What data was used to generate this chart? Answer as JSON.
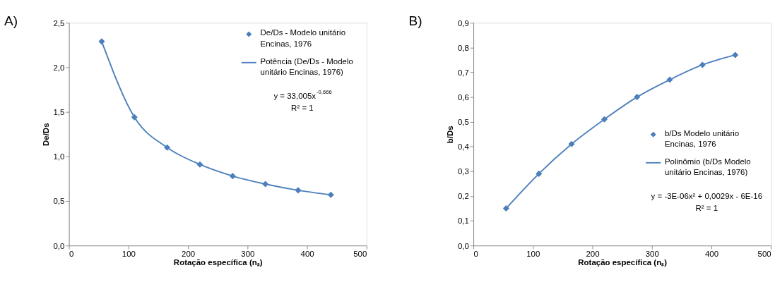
{
  "chart_data": [
    {
      "type": "scatter",
      "title": "A)",
      "xlabel": "Rotação específica (nₛ)",
      "ylabel": "De/Ds",
      "x": [
        55,
        110,
        165,
        220,
        275,
        330,
        385,
        440
      ],
      "series": [
        {
          "name": "De/Ds - Modelo unitário Encinas, 1976",
          "color": "#4a7ebb",
          "marker": "diamond",
          "values": [
            2.29,
            1.44,
            1.1,
            0.91,
            0.78,
            0.69,
            0.62,
            0.57
          ]
        },
        {
          "name": "Potência (De/Ds - Modelo unitário Encinas, 1976)",
          "type": "line",
          "color": "#4f81bd",
          "marker": "none",
          "values": [
            2.29,
            1.44,
            1.1,
            0.91,
            0.78,
            0.69,
            0.62,
            0.57
          ]
        }
      ],
      "xlim": [
        0,
        500
      ],
      "xticks": [
        0,
        100,
        200,
        300,
        400,
        500
      ],
      "ylim": [
        0,
        2.5
      ],
      "yticks": [
        {
          "value": 0,
          "label": "0,0"
        },
        {
          "value": 0.5,
          "label": "0,5"
        },
        {
          "value": 1,
          "label": "1,0"
        },
        {
          "value": 1.5,
          "label": "1,5"
        },
        {
          "value": 2,
          "label": "2,0"
        },
        {
          "value": 2.5,
          "label": "2,5"
        }
      ],
      "annotations": [
        "y = 33,005x$^{-0,666}$",
        "R² = 1"
      ],
      "legend": "top right",
      "grid": false
    },
    {
      "type": "scatter",
      "title": "B)",
      "xlabel": "Rotação específica (nₛ)",
      "ylabel": "b/Ds",
      "x": [
        55,
        110,
        165,
        220,
        275,
        330,
        385,
        440
      ],
      "series": [
        {
          "name": "b/Ds Modelo unitário Encinas, 1976",
          "color": "#4a7ebb",
          "marker": "diamond",
          "values": [
            0.15,
            0.29,
            0.41,
            0.51,
            0.6,
            0.67,
            0.73,
            0.77
          ]
        },
        {
          "name": "Polinômio (b/Ds Modelo unitário Encinas, 1976)",
          "type": "line",
          "color": "#4f81bd",
          "marker": "none",
          "values": [
            0.15,
            0.29,
            0.41,
            0.51,
            0.6,
            0.67,
            0.73,
            0.77
          ]
        }
      ],
      "xlim": [
        0,
        500
      ],
      "xticks": [
        0,
        100,
        200,
        300,
        400,
        500
      ],
      "ylim": [
        0,
        0.9
      ],
      "yticks": [
        {
          "value": 0,
          "label": "0,0"
        },
        {
          "value": 0.1,
          "label": "0,1"
        },
        {
          "value": 0.2,
          "label": "0,2"
        },
        {
          "value": 0.3,
          "label": "0,3"
        },
        {
          "value": 0.4,
          "label": "0,4"
        },
        {
          "value": 0.5,
          "label": "0,5"
        },
        {
          "value": 0.6,
          "label": "0,6"
        },
        {
          "value": 0.7,
          "label": "0,7"
        },
        {
          "value": 0.8,
          "label": "0,8"
        },
        {
          "value": 0.9,
          "label": "0,9"
        }
      ],
      "annotations": [
        "y = -3E-06x² + 0,0029x - 6E-16",
        "R² = 1"
      ],
      "legend": "right",
      "grid": false
    }
  ]
}
